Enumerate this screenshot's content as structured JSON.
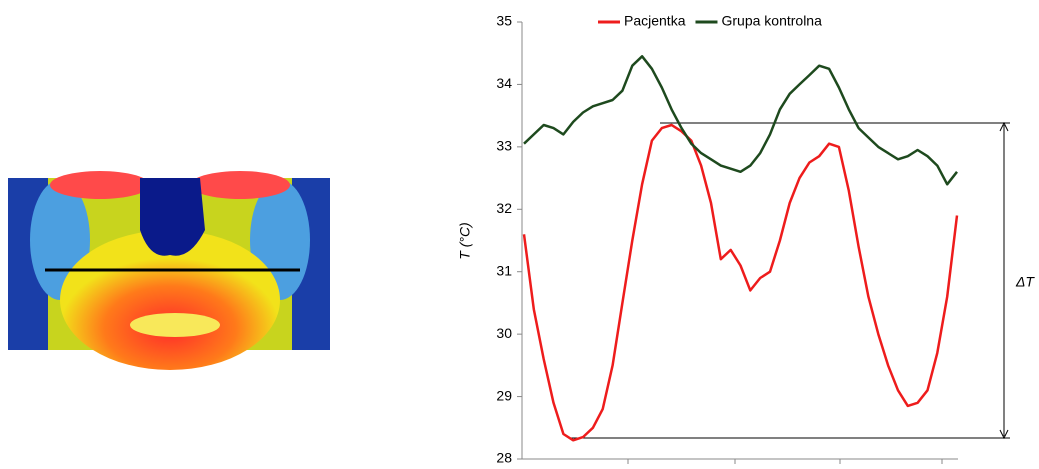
{
  "chart_data": {
    "type": "line",
    "y_label": "T (°C)",
    "annotation": "ΔT",
    "legend": "top",
    "categories": [
      null,
      null,
      null,
      null,
      null,
      null,
      null,
      null,
      null,
      null,
      null,
      null,
      null,
      null,
      null,
      null,
      null,
      null,
      null,
      null,
      null,
      null,
      null,
      null,
      null,
      null,
      null,
      null,
      null,
      null,
      null,
      null,
      null,
      null,
      null,
      null,
      null,
      null,
      null,
      null,
      null,
      null,
      null,
      null,
      null
    ],
    "series": [
      {
        "name": "Pacjentka",
        "color": "#ee1c1c",
        "values": [
          31.6,
          30.4,
          29.6,
          28.9,
          28.4,
          28.3,
          28.35,
          28.5,
          28.8,
          29.5,
          30.5,
          31.5,
          32.4,
          33.1,
          33.3,
          33.35,
          33.25,
          33.1,
          32.7,
          32.1,
          31.2,
          31.35,
          31.1,
          30.7,
          30.9,
          31.0,
          31.5,
          32.1,
          32.5,
          32.75,
          32.85,
          33.05,
          33.0,
          32.3,
          31.4,
          30.6,
          30.0,
          29.5,
          29.1,
          28.85,
          28.9,
          29.1,
          29.7,
          30.6,
          31.9
        ]
      },
      {
        "name": "Grupa kontrolna",
        "color": "#1e4a1e",
        "values": [
          33.05,
          33.2,
          33.35,
          33.3,
          33.2,
          33.4,
          33.55,
          33.65,
          33.7,
          33.75,
          33.9,
          34.3,
          34.45,
          34.25,
          33.95,
          33.6,
          33.3,
          33.05,
          32.9,
          32.8,
          32.7,
          32.65,
          32.6,
          32.7,
          32.9,
          33.2,
          33.6,
          33.85,
          34.0,
          34.15,
          34.3,
          34.25,
          33.95,
          33.6,
          33.3,
          33.15,
          33.0,
          32.9,
          32.8,
          32.85,
          32.95,
          32.85,
          32.7,
          32.4,
          32.6
        ]
      }
    ],
    "ylim": [
      28,
      35
    ],
    "yticks": [
      28,
      29,
      30,
      31,
      32,
      33,
      34,
      35
    ],
    "grid": false
  }
}
